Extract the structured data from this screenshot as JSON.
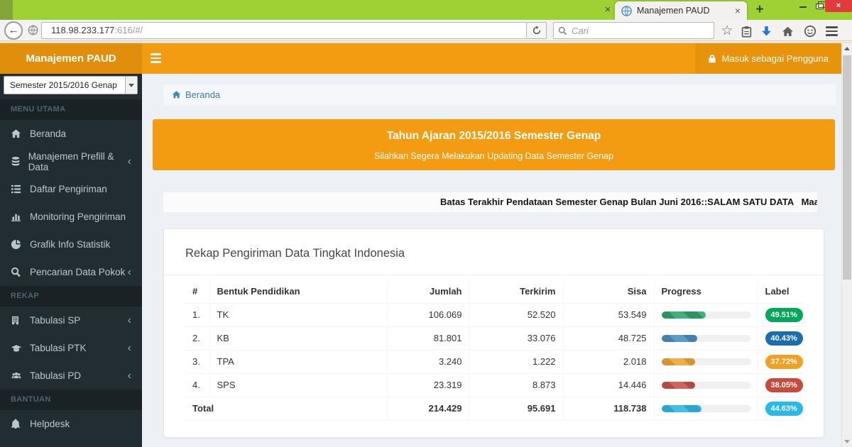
{
  "browser": {
    "active_tab_title": "Manajemen PAUD",
    "url_host": "118.98.233.177",
    "url_path": ":616/#/",
    "search_placeholder": "Cari"
  },
  "icons": {
    "back": "←",
    "close": "×",
    "new_tab": "+",
    "star": "☆",
    "chevron_left": "‹"
  },
  "header": {
    "brand": "Manajemen PAUD",
    "login_label": "Masuk sebagai Pengguna"
  },
  "sidebar": {
    "semester_select_value": "Semester 2015/2016 Genap",
    "sections": {
      "menu": "MENU UTAMA",
      "rekap": "REKAP",
      "bantuan": "BANTUAN"
    },
    "items": [
      {
        "label": "Beranda"
      },
      {
        "label": "Manajemen Prefill & Data"
      },
      {
        "label": "Daftar Pengiriman"
      },
      {
        "label": "Monitoring Pengiriman"
      },
      {
        "label": "Grafik Info Statistik"
      },
      {
        "label": "Pencarian Data Pokok"
      },
      {
        "label": "Tabulasi SP"
      },
      {
        "label": "Tabulasi PTK"
      },
      {
        "label": "Tabulasi PD"
      },
      {
        "label": "Helpdesk"
      }
    ]
  },
  "content": {
    "breadcrumb": "Beranda",
    "banner_title": "Tahun Ajaran 2015/2016 Semester Genap",
    "banner_subtitle": "Silahkan Segera Melakukan Updating Data Semester Genap",
    "marquee": "Batas Terakhir Pendataan Semester Genap Bulan Juni 2016::SALAM SATU DATA   Maaf, untuk sem",
    "card_title": "Rekap Pengiriman Data Tingkat Indonesia"
  },
  "table": {
    "headers": [
      "#",
      "Bentuk Pendidikan",
      "Jumlah",
      "Terkirim",
      "Sisa",
      "Progress",
      "Label"
    ],
    "rows": [
      {
        "no": "1.",
        "name": "TK",
        "jumlah": "106.069",
        "terkirim": "52.520",
        "sisa": "53.549",
        "progress": 49.51,
        "label": "49.51%",
        "bar_color": "#2aa66a",
        "label_color": "#00a65a"
      },
      {
        "no": "2.",
        "name": "KB",
        "jumlah": "81.801",
        "terkirim": "33.076",
        "sisa": "48.725",
        "progress": 40.43,
        "label": "40.43%",
        "bar_color": "#4a8fc2",
        "label_color": "#1b6eae"
      },
      {
        "no": "3.",
        "name": "TPA",
        "jumlah": "3.240",
        "terkirim": "1.222",
        "sisa": "2.018",
        "progress": 37.72,
        "label": "37.72%",
        "bar_color": "#f2a432",
        "label_color": "#f0a125"
      },
      {
        "no": "4.",
        "name": "SPS",
        "jumlah": "23.319",
        "terkirim": "8.873",
        "sisa": "14.446",
        "progress": 38.05,
        "label": "38.05%",
        "bar_color": "#c8534a",
        "label_color": "#c74b3d"
      }
    ],
    "total": {
      "name": "Total",
      "jumlah": "214.429",
      "terkirim": "95.691",
      "sisa": "118.738",
      "progress": 44.63,
      "label": "44.63%",
      "bar_color": "#2cb9e9",
      "label_color": "#29b9e8"
    }
  }
}
